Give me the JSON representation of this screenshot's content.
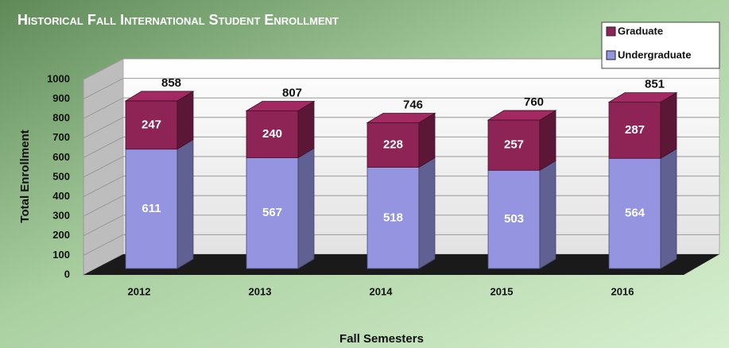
{
  "chart_data": {
    "type": "bar3d_stacked",
    "title": "Historical Fall International Student Enrollment",
    "x_label": "Fall Semesters",
    "y_label": "Total Enrollment",
    "categories": [
      "2012",
      "2013",
      "2014",
      "2015",
      "2016"
    ],
    "series": [
      {
        "name": "Undergraduate",
        "color": "#9494e0",
        "values": [
          611,
          567,
          518,
          503,
          564
        ]
      },
      {
        "name": "Graduate",
        "color": "#8e2455",
        "values": [
          247,
          240,
          228,
          257,
          287
        ]
      }
    ],
    "totals": [
      858,
      807,
      746,
      760,
      851
    ],
    "ylim": [
      0,
      1000
    ],
    "yticks": [
      0,
      100,
      200,
      300,
      400,
      500,
      600,
      700,
      800,
      900,
      1000
    ],
    "grid": true,
    "legend": "top-right"
  }
}
